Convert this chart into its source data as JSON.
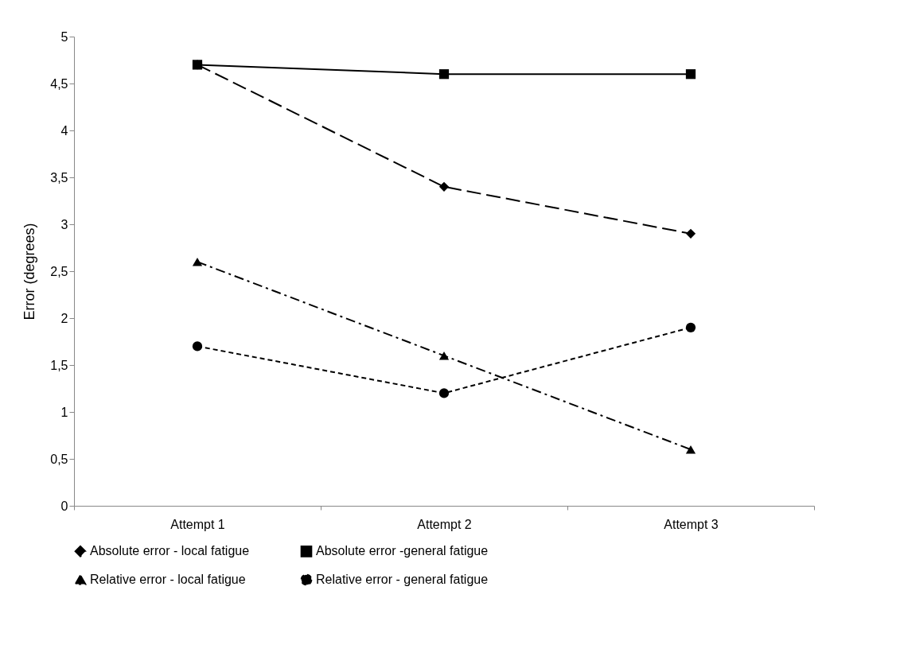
{
  "chart_data": {
    "type": "line",
    "ylabel": "Error (degrees)",
    "categories": [
      "Attempt 1",
      "Attempt 2",
      "Attempt 3"
    ],
    "series": [
      {
        "name": "Absolute error - local fatigue",
        "color": "#000000",
        "marker": "diamond",
        "line_style": "dashed",
        "values": [
          4.7,
          3.4,
          2.9
        ]
      },
      {
        "name": "Absolute error -general fatigue",
        "color": "#000000",
        "marker": "square",
        "line_style": "solid",
        "values": [
          4.7,
          4.6,
          4.6
        ]
      },
      {
        "name": "Relative error - local fatigue",
        "color": "#000000",
        "marker": "triangle",
        "line_style": "dashdot",
        "values": [
          2.6,
          1.6,
          0.6
        ]
      },
      {
        "name": "Relative error - general fatigue",
        "color": "#000000",
        "marker": "circle",
        "line_style": "dotted",
        "values": [
          1.7,
          1.2,
          1.9
        ]
      }
    ],
    "ylim": [
      0,
      5
    ],
    "yticks": [
      0,
      {
        "value": 0.5,
        "label": "0,5"
      },
      1,
      {
        "value": 1.5,
        "label": "1,5"
      },
      2,
      {
        "value": 2.5,
        "label": "2,5"
      },
      3,
      {
        "value": 3.5,
        "label": "3,5"
      },
      4,
      {
        "value": 4.5,
        "label": "4,5"
      },
      5
    ],
    "grid": false,
    "legend": "bottom"
  }
}
